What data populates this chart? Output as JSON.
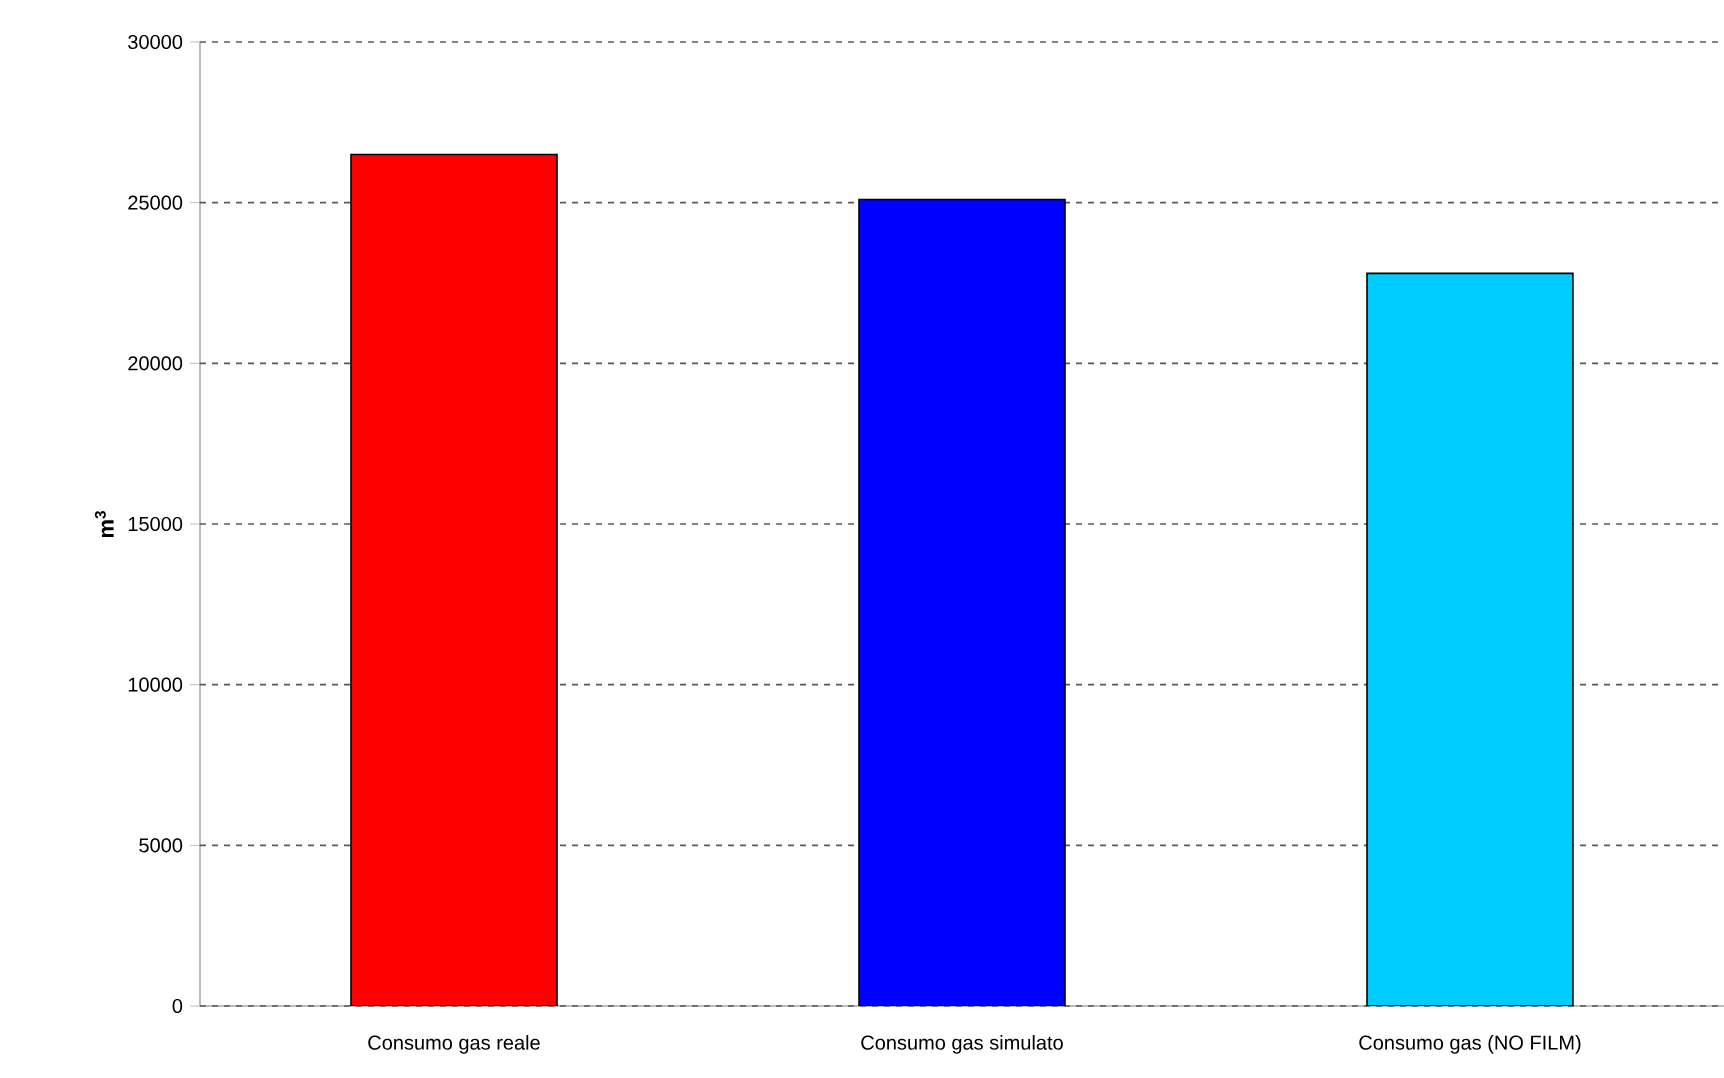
{
  "chart_data": {
    "type": "bar",
    "ylabel": "m$^{3}$",
    "categories": [
      "Consumo gas reale",
      "Consumo gas simulato",
      "Consumo gas (NO FILM)"
    ],
    "values": [
      26500,
      25100,
      22800
    ],
    "colors": [
      "#ff0000",
      "#0000ff",
      "#00ccff"
    ],
    "ylim": [
      0,
      30000
    ],
    "yticks": [
      0,
      5000,
      10000,
      15000,
      20000,
      25000,
      30000
    ],
    "grid": "y"
  }
}
